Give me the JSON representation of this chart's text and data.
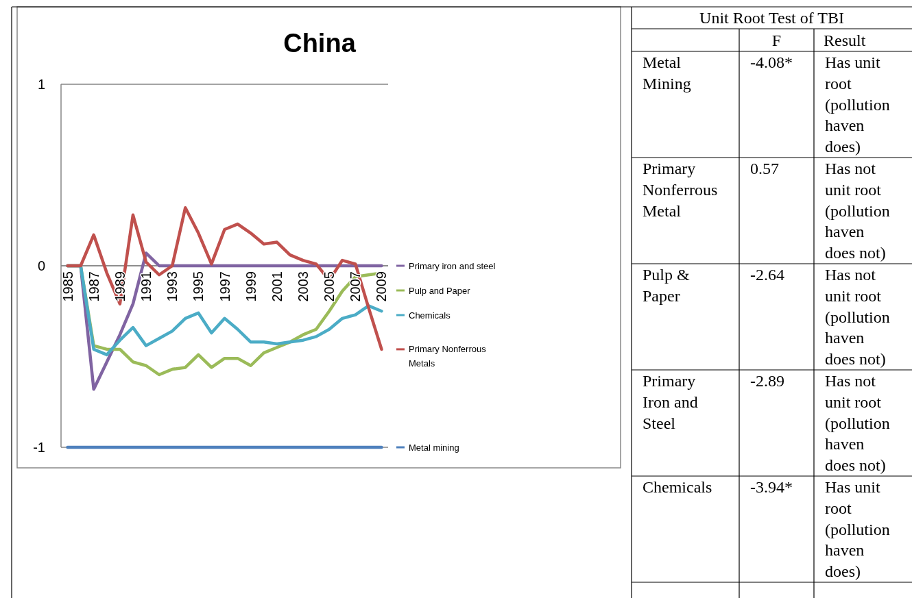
{
  "chart_data": [
    {
      "type": "line",
      "title": "China",
      "categories": [
        "1985",
        null,
        "1987",
        null,
        "1989",
        null,
        "1991",
        null,
        "1993",
        null,
        "1995",
        null,
        "1997",
        null,
        "1999",
        null,
        "2001",
        null,
        "2003",
        null,
        "2005",
        null,
        "2007",
        null,
        "2009"
      ],
      "series": [
        {
          "name": "Primary iron and steel",
          "color": "#8064a2",
          "values": [
            0,
            0,
            -0.68,
            -0.53,
            -0.38,
            -0.21,
            0.07,
            0,
            0,
            0,
            0,
            0,
            0,
            0,
            0,
            0,
            0,
            0,
            0,
            0,
            0,
            0,
            0,
            0,
            0
          ]
        },
        {
          "name": "Pulp and Paper",
          "color": "#9bbb59",
          "values": [
            0,
            0,
            -0.44,
            -0.46,
            -0.46,
            -0.53,
            -0.55,
            -0.6,
            -0.57,
            -0.56,
            -0.49,
            -0.56,
            -0.51,
            -0.51,
            -0.55,
            -0.48,
            -0.45,
            -0.42,
            -0.38,
            -0.35,
            -0.25,
            -0.14,
            -0.06,
            -0.05,
            -0.04
          ]
        },
        {
          "name": "Chemicals",
          "color": "#4bacc6",
          "values": [
            0,
            0,
            -0.46,
            -0.49,
            -0.41,
            -0.34,
            -0.44,
            -0.4,
            -0.36,
            -0.29,
            -0.26,
            -0.37,
            -0.29,
            -0.35,
            -0.42,
            -0.42,
            -0.43,
            -0.42,
            -0.41,
            -0.39,
            -0.35,
            -0.29,
            -0.27,
            -0.22,
            -0.25
          ]
        },
        {
          "name": "Primary Nonferrous Metals",
          "color": "#c0504d",
          "values": [
            0,
            0,
            0.17,
            -0.04,
            -0.21,
            0.28,
            0.02,
            -0.05,
            0,
            0.32,
            0.18,
            0.01,
            0.2,
            0.23,
            0.18,
            0.12,
            0.13,
            0.06,
            0.03,
            0.01,
            -0.08,
            0.03,
            0.01,
            -0.23,
            -0.46
          ]
        },
        {
          "name": "Metal mining",
          "color": "#4f81bd",
          "values": [
            -1,
            -1,
            -1,
            -1,
            -1,
            -1,
            -1,
            -1,
            -1,
            -1,
            -1,
            -1,
            -1,
            -1,
            -1,
            -1,
            -1,
            -1,
            -1,
            -1,
            -1,
            -1,
            -1,
            -1,
            -1
          ]
        }
      ],
      "ylim": [
        -1,
        1
      ],
      "yticks": [
        -1,
        0,
        1
      ],
      "grid": "y",
      "legend": "right"
    },
    {
      "type": "other",
      "title": "Unit Root Test of TBI",
      "annotations": [
        "F",
        "Result",
        "Metal Mining",
        "-4.08*",
        "Has unit root (pollution haven does)",
        "Primary Nonferrous Metal",
        "0.57",
        "Has not unit root (pollution haven does not)",
        "Pulp & Paper",
        "-2.64",
        "Has not unit root (pollution haven does not)",
        "Primary Iron and Steel",
        "-2.89",
        "Has not unit root (pollution haven does not)",
        "Chemicals",
        "-3.94*",
        "Has unit root (pollution haven does)"
      ]
    }
  ]
}
